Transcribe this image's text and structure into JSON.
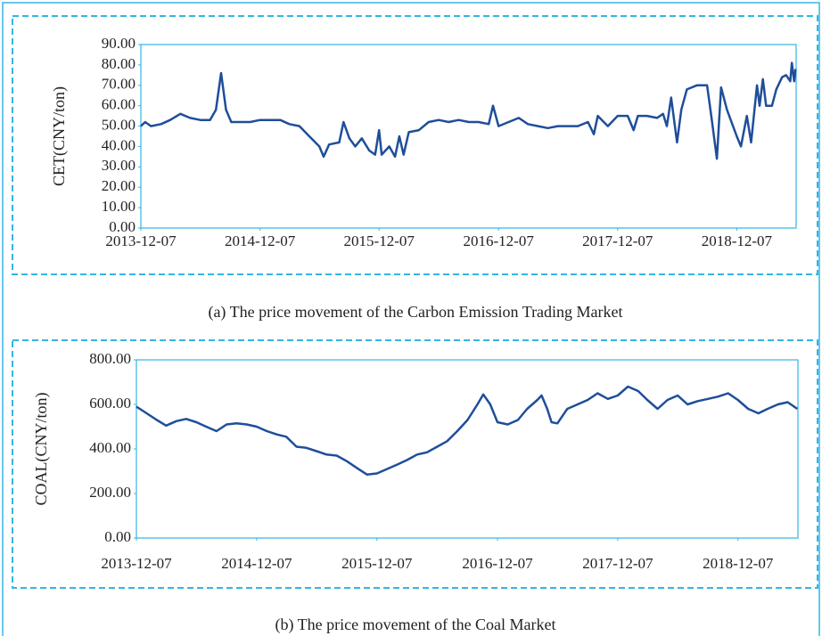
{
  "chart_data": [
    {
      "type": "line",
      "caption": "(a)  The price movement of the Carbon Emission Trading Market",
      "y_label": "CET(CNY/ton)",
      "xlim": [
        "2013-12-07",
        "2019-06-07"
      ],
      "xticks": [
        "2013-12-07",
        "2014-12-07",
        "2015-12-07",
        "2016-12-07",
        "2017-12-07",
        "2018-12-07"
      ],
      "ylim": [
        0,
        90
      ],
      "yticks": [
        {
          "value": 0,
          "label": "0.00"
        },
        {
          "value": 10,
          "label": "10.00"
        },
        {
          "value": 20,
          "label": "20.00"
        },
        {
          "value": 30,
          "label": "30.00"
        },
        {
          "value": 40,
          "label": "40.00"
        },
        {
          "value": 50,
          "label": "50.00"
        },
        {
          "value": 60,
          "label": "60.00"
        },
        {
          "value": 70,
          "label": "70.00"
        },
        {
          "value": 80,
          "label": "80.00"
        },
        {
          "value": 90,
          "label": "90.00"
        }
      ],
      "x": [
        "2013-12-07",
        "2013-12-20",
        "2014-01-07",
        "2014-02-07",
        "2014-03-07",
        "2014-04-07",
        "2014-05-07",
        "2014-06-07",
        "2014-07-07",
        "2014-07-25",
        "2014-08-10",
        "2014-08-25",
        "2014-09-10",
        "2014-10-07",
        "2014-11-07",
        "2014-12-07",
        "2015-01-07",
        "2015-02-07",
        "2015-03-07",
        "2015-04-07",
        "2015-05-07",
        "2015-06-07",
        "2015-06-20",
        "2015-07-07",
        "2015-08-07",
        "2015-08-20",
        "2015-09-07",
        "2015-09-25",
        "2015-10-15",
        "2015-11-07",
        "2015-11-25",
        "2015-12-07",
        "2015-12-15",
        "2016-01-07",
        "2016-01-25",
        "2016-02-07",
        "2016-02-20",
        "2016-03-07",
        "2016-04-07",
        "2016-05-07",
        "2016-06-07",
        "2016-07-07",
        "2016-08-07",
        "2016-09-07",
        "2016-10-07",
        "2016-11-07",
        "2016-11-20",
        "2016-12-07",
        "2017-01-07",
        "2017-02-07",
        "2017-03-07",
        "2017-04-07",
        "2017-05-07",
        "2017-06-07",
        "2017-07-07",
        "2017-08-07",
        "2017-09-07",
        "2017-09-25",
        "2017-10-07",
        "2017-11-07",
        "2017-12-07",
        "2018-01-07",
        "2018-01-25",
        "2018-02-07",
        "2018-03-07",
        "2018-04-07",
        "2018-04-25",
        "2018-05-07",
        "2018-05-20",
        "2018-06-07",
        "2018-06-20",
        "2018-07-07",
        "2018-08-07",
        "2018-09-07",
        "2018-09-20",
        "2018-10-07",
        "2018-10-20",
        "2018-11-07",
        "2018-12-07",
        "2018-12-20",
        "2019-01-07",
        "2019-01-20",
        "2019-02-07",
        "2019-02-15",
        "2019-02-25",
        "2019-03-07",
        "2019-03-25",
        "2019-04-07",
        "2019-04-25",
        "2019-05-07",
        "2019-05-20",
        "2019-05-25",
        "2019-06-01",
        "2019-06-05"
      ],
      "series": [
        {
          "name": "CET",
          "color": "#1f4e99",
          "values": [
            50,
            52,
            50,
            51,
            53,
            56,
            54,
            53,
            53,
            58,
            76,
            58,
            52,
            52,
            52,
            53,
            53,
            53,
            51,
            50,
            45,
            40,
            35,
            41,
            42,
            52,
            44,
            40,
            44,
            38,
            36,
            48,
            36,
            40,
            35,
            45,
            36,
            47,
            48,
            52,
            53,
            52,
            53,
            52,
            52,
            51,
            60,
            50,
            52,
            54,
            51,
            50,
            49,
            50,
            50,
            50,
            52,
            46,
            55,
            50,
            55,
            55,
            48,
            55,
            55,
            54,
            56,
            50,
            64,
            42,
            58,
            68,
            70,
            70,
            55,
            34,
            69,
            58,
            45,
            40,
            55,
            42,
            70,
            60,
            73,
            60,
            60,
            68,
            74,
            75,
            72,
            81,
            72,
            78
          ]
        }
      ]
    },
    {
      "type": "line",
      "caption": "(b)  The price movement of the Coal Market",
      "y_label": "COAL(CNY/ton)",
      "xlim": [
        "2013-12-07",
        "2019-06-07"
      ],
      "xticks": [
        "2013-12-07",
        "2014-12-07",
        "2015-12-07",
        "2016-12-07",
        "2017-12-07",
        "2018-12-07"
      ],
      "ylim": [
        0,
        800
      ],
      "yticks": [
        {
          "value": 0,
          "label": "0.00"
        },
        {
          "value": 200,
          "label": "200.00"
        },
        {
          "value": 400,
          "label": "400.00"
        },
        {
          "value": 600,
          "label": "600.00"
        },
        {
          "value": 800,
          "label": "800.00"
        }
      ],
      "x": [
        "2013-12-07",
        "2014-01-07",
        "2014-02-07",
        "2014-03-07",
        "2014-04-07",
        "2014-05-07",
        "2014-06-07",
        "2014-07-07",
        "2014-08-07",
        "2014-09-07",
        "2014-10-07",
        "2014-11-07",
        "2014-12-07",
        "2015-01-07",
        "2015-02-07",
        "2015-03-07",
        "2015-04-07",
        "2015-05-07",
        "2015-06-07",
        "2015-07-07",
        "2015-08-07",
        "2015-09-07",
        "2015-10-07",
        "2015-11-07",
        "2015-12-07",
        "2016-01-07",
        "2016-02-07",
        "2016-03-07",
        "2016-04-07",
        "2016-05-07",
        "2016-06-07",
        "2016-07-07",
        "2016-08-07",
        "2016-09-07",
        "2016-10-07",
        "2016-10-25",
        "2016-11-15",
        "2016-12-07",
        "2017-01-07",
        "2017-02-07",
        "2017-03-07",
        "2017-04-07",
        "2017-04-20",
        "2017-05-07",
        "2017-05-20",
        "2017-06-07",
        "2017-07-07",
        "2017-08-07",
        "2017-09-07",
        "2017-10-07",
        "2017-11-07",
        "2017-12-07",
        "2018-01-07",
        "2018-02-07",
        "2018-03-07",
        "2018-04-07",
        "2018-05-07",
        "2018-06-07",
        "2018-07-07",
        "2018-08-07",
        "2018-09-07",
        "2018-10-07",
        "2018-11-07",
        "2018-12-07",
        "2019-01-07",
        "2019-02-07",
        "2019-03-07",
        "2019-04-07",
        "2019-05-07",
        "2019-06-05"
      ],
      "series": [
        {
          "name": "COAL",
          "color": "#1f4e99",
          "values": [
            590,
            560,
            530,
            505,
            525,
            535,
            520,
            500,
            480,
            510,
            515,
            510,
            500,
            480,
            465,
            455,
            410,
            405,
            390,
            375,
            370,
            345,
            315,
            285,
            290,
            310,
            330,
            350,
            375,
            385,
            410,
            435,
            480,
            530,
            600,
            645,
            600,
            520,
            510,
            530,
            580,
            620,
            640,
            580,
            520,
            515,
            580,
            600,
            620,
            650,
            625,
            640,
            680,
            660,
            620,
            580,
            620,
            640,
            600,
            615,
            625,
            635,
            650,
            620,
            580,
            560,
            580,
            600,
            610,
            580
          ]
        }
      ]
    }
  ]
}
